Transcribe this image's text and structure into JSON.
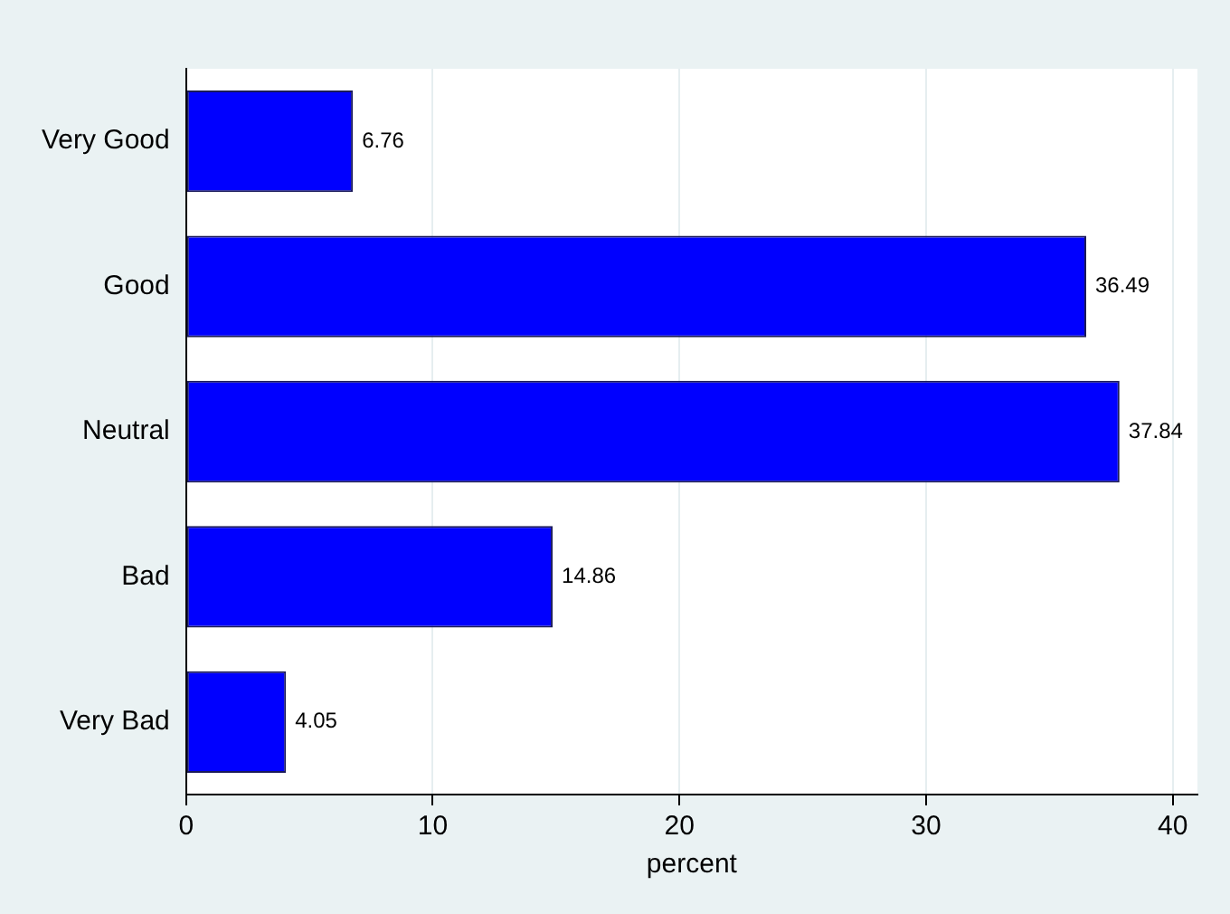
{
  "chart_data": {
    "type": "bar",
    "orientation": "horizontal",
    "categories": [
      "Very Good",
      "Good",
      "Neutral",
      "Bad",
      "Very Bad"
    ],
    "values": [
      6.76,
      36.49,
      37.84,
      14.86,
      4.05
    ],
    "color": "#0000ff",
    "data_labels": true,
    "xlim": [
      0,
      41
    ],
    "xticks": [
      0,
      10,
      20,
      30,
      40
    ],
    "xlabel": "percent",
    "grid": "x",
    "legend": false
  }
}
